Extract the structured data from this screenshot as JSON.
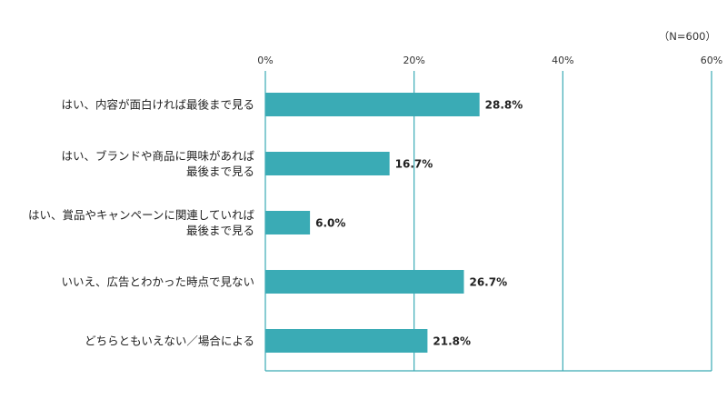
{
  "sample_note": "（N=600）",
  "colors": {
    "bar": "#3AABB5",
    "grid": "#3AABB5",
    "axis": "#3AABB5"
  },
  "chart_data": {
    "type": "bar",
    "orientation": "horizontal",
    "categories": [
      [
        "はい、内容が面白ければ最後まで見る"
      ],
      [
        "はい、ブランドや商品に興味があれば",
        "最後まで見る"
      ],
      [
        "はい、賞品やキャンペーンに関連していれば",
        "最後まで見る"
      ],
      [
        "いいえ、広告とわかった時点で見ない"
      ],
      [
        "どちらともいえない／場合による"
      ]
    ],
    "values": [
      28.8,
      16.7,
      6.0,
      26.7,
      21.8
    ],
    "value_labels": [
      "28.8%",
      "16.7%",
      "6.0%",
      "26.7%",
      "21.8%"
    ],
    "xlim": [
      0,
      60
    ],
    "xticks": [
      0,
      20,
      40,
      60
    ],
    "xtick_labels": [
      "0%",
      "20%",
      "40%",
      "60%"
    ],
    "grid": true,
    "legend": "none"
  }
}
